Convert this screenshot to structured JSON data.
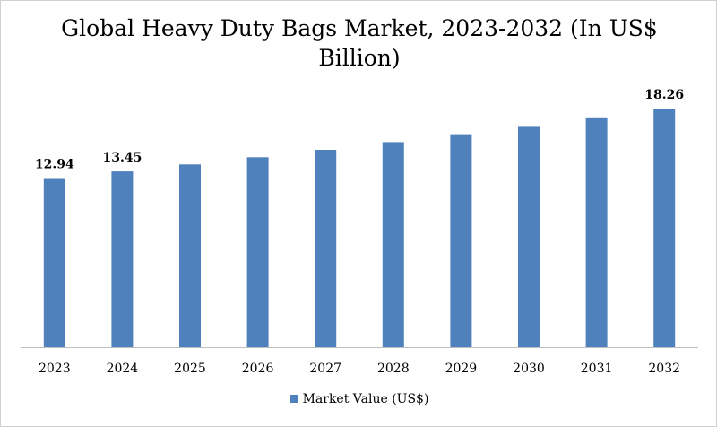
{
  "chart_data": {
    "type": "bar",
    "title": "Global Heavy Duty Bags Market, 2023-2032 (In US$ Billion)",
    "categories": [
      "2023",
      "2024",
      "2025",
      "2026",
      "2027",
      "2028",
      "2029",
      "2030",
      "2031",
      "2032"
    ],
    "series": [
      {
        "name": "Market Value (US$)",
        "values": [
          12.94,
          13.45,
          13.98,
          14.53,
          15.1,
          15.69,
          16.3,
          16.93,
          17.59,
          18.26
        ],
        "data_labels": [
          "12.94",
          "13.45",
          null,
          null,
          null,
          null,
          null,
          null,
          null,
          "18.26"
        ]
      }
    ],
    "xlabel": "",
    "ylabel": "",
    "ylim": [
      0,
      18.26
    ],
    "grid": false,
    "legend_position": "bottom",
    "colors": {
      "bar": "#4f81bd",
      "axis": "#bfbfbf"
    }
  }
}
